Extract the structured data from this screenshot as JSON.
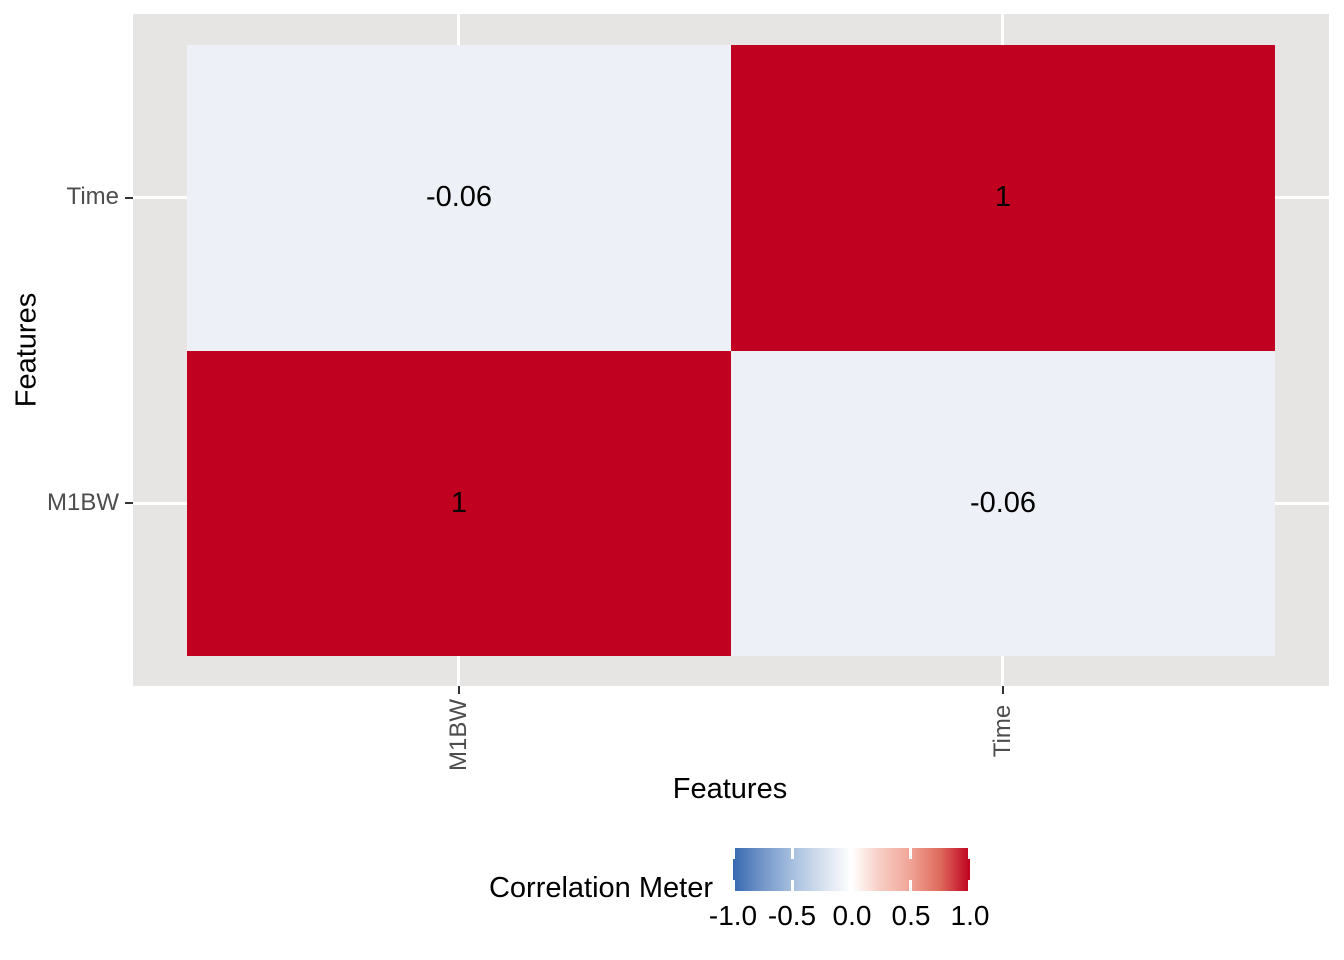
{
  "chart_data": {
    "type": "heatmap",
    "title": "",
    "x_axis": {
      "title": "Features",
      "categories": [
        "M1BW",
        "Time"
      ]
    },
    "y_axis": {
      "title": "Features",
      "categories_top_to_bottom": [
        "Time",
        "M1BW"
      ]
    },
    "matrix": {
      "rows_top_to_bottom": [
        "Time",
        "M1BW"
      ],
      "cols_left_to_right": [
        "M1BW",
        "Time"
      ],
      "values": [
        [
          -0.06,
          1
        ],
        [
          1,
          -0.06
        ]
      ]
    },
    "cell_labels": [
      [
        "-0.06",
        "1"
      ],
      [
        "1",
        "-0.06"
      ]
    ],
    "legend": {
      "title": "Correlation Meter",
      "tick_labels": [
        "-1.0",
        "-0.5",
        "0.0",
        "0.5",
        "1.0"
      ],
      "range": [
        -1.0,
        1.0
      ],
      "gradient_low": "#3668B0",
      "gradient_mid": "#FFFFFF",
      "gradient_high": "#C00020"
    },
    "colors": {
      "panel_background": "#E6E5E4",
      "gridline": "#FFFFFF",
      "tile_value_1": "#C0011F",
      "tile_value_neg_0_06": "#EDF1F7",
      "axis_tick_label": "#4D4D4D",
      "tick_mark": "#333333",
      "cell_text": "#000000"
    },
    "layout": {
      "grid": "major gridlines only",
      "legend_position": "bottom"
    }
  }
}
